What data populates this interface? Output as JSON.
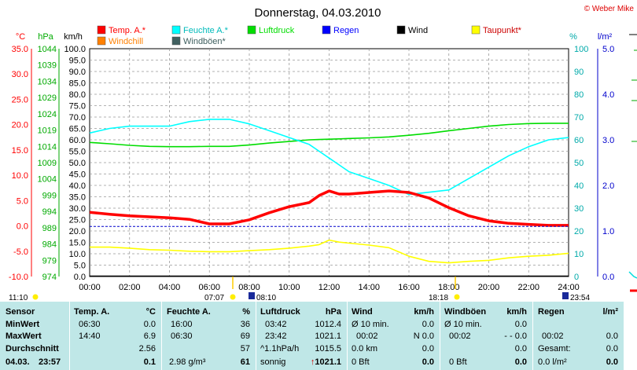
{
  "chart_data": {
    "type": "line",
    "title": "Donnerstag, 04.03.2010",
    "copyright": "© Weber Mike",
    "legend": [
      {
        "name": "Temp. A.*",
        "color": "#ff0000"
      },
      {
        "name": "Feuchte A.*",
        "color": "#00ffff"
      },
      {
        "name": "Luftdruck",
        "color": "#00dd00"
      },
      {
        "name": "Regen",
        "color": "#0000ff"
      },
      {
        "name": "Wind",
        "color": "#000000"
      },
      {
        "name": "Taupunkt*",
        "color": "#ffff00"
      },
      {
        "name": "Windchill",
        "color": "#ff8000"
      },
      {
        "name": "Windböen*",
        "color": "#406060"
      }
    ],
    "axes": {
      "temp": {
        "unit": "°C",
        "min": -10,
        "max": 35,
        "ticks": [
          "35.0",
          "30.0",
          "25.0",
          "20.0",
          "15.0",
          "10.0",
          "5.0",
          "0.0",
          "-5.0",
          "-10.0"
        ]
      },
      "pressure": {
        "unit": "hPa",
        "ticks": [
          "1044",
          "1039",
          "1034",
          "1029",
          "1024",
          "1019",
          "1014",
          "1009",
          "1004",
          "999",
          "994",
          "989",
          "984",
          "979",
          "974"
        ]
      },
      "wind": {
        "unit": "km/h",
        "min": 0,
        "max": 100,
        "ticks": [
          "100.0",
          "95.0",
          "90.0",
          "85.0",
          "80.0",
          "75.0",
          "70.0",
          "65.0",
          "60.0",
          "55.0",
          "50.0",
          "45.0",
          "40.0",
          "35.0",
          "30.0",
          "25.0",
          "20.0",
          "15.0",
          "10.0",
          "5.0",
          "0.0"
        ]
      },
      "humidity": {
        "unit": "%",
        "min": 0,
        "max": 100,
        "ticks": [
          "100",
          "90",
          "80",
          "70",
          "60",
          "50",
          "40",
          "30",
          "20",
          "10",
          "0"
        ]
      },
      "rain": {
        "unit": "l/m²",
        "min": 0,
        "max": 5,
        "ticks": [
          "5.0",
          "4.0",
          "3.0",
          "2.0",
          "1.0",
          "0.0"
        ]
      },
      "x": {
        "ticks": [
          "00:00",
          "02:00",
          "04:00",
          "06:00",
          "08:00",
          "10:00",
          "12:00",
          "14:00",
          "16:00",
          "18:00",
          "20:00",
          "22:00",
          "24:00"
        ]
      }
    },
    "x_hours": [
      0,
      1,
      2,
      3,
      4,
      5,
      6,
      7,
      8,
      9,
      10,
      11,
      11.5,
      12,
      12.5,
      13,
      14,
      15,
      16,
      17,
      18,
      19,
      20,
      21,
      22,
      23,
      24
    ],
    "series": [
      {
        "name": "Temp. A.*",
        "color": "#ff0000",
        "axis": "temp",
        "values": [
          2.7,
          2.3,
          2.0,
          1.8,
          1.6,
          1.3,
          0.4,
          0.4,
          1.2,
          2.6,
          3.8,
          4.6,
          6.0,
          6.9,
          6.3,
          6.3,
          6.6,
          6.9,
          6.6,
          5.5,
          3.6,
          2.0,
          1.0,
          0.5,
          0.3,
          0.1,
          0.1
        ]
      },
      {
        "name": "Feuchte A.*",
        "color": "#00ffff",
        "axis": "humidity",
        "values": [
          63,
          65,
          66,
          66,
          66,
          68,
          69,
          69,
          67,
          64,
          61,
          58,
          55,
          52,
          49,
          46,
          43,
          40,
          36,
          37,
          38,
          43,
          48,
          53,
          57,
          60,
          61
        ]
      },
      {
        "name": "Luftdruck",
        "color": "#00dd00",
        "axis": "pressure",
        "values": [
          1015.2,
          1014.8,
          1014.3,
          1014.0,
          1013.9,
          1013.9,
          1014.0,
          1014.0,
          1014.4,
          1015.0,
          1015.5,
          1016.0,
          1016.1,
          1016.2,
          1016.3,
          1016.4,
          1016.6,
          1016.9,
          1017.4,
          1018.0,
          1018.8,
          1019.5,
          1020.2,
          1020.7,
          1021.0,
          1021.1,
          1021.1
        ]
      },
      {
        "name": "Taupunkt*",
        "color": "#ffff00",
        "axis": "temp",
        "values": [
          -4.2,
          -4.2,
          -4.4,
          -4.7,
          -4.8,
          -5.0,
          -5.1,
          -5.1,
          -4.9,
          -4.7,
          -4.4,
          -4.0,
          -3.7,
          -2.8,
          -3.2,
          -3.4,
          -3.8,
          -4.3,
          -6.0,
          -7.0,
          -7.3,
          -7.0,
          -6.8,
          -6.3,
          -6.0,
          -5.8,
          -5.4
        ]
      }
    ],
    "rain_line_value": 1.1,
    "annotations": {
      "sunrise_left": "11:10",
      "sunrise": "07:07",
      "moonrise": "08:10",
      "sunset": "18:18",
      "moonset": "23:54"
    }
  },
  "table": {
    "sensor_header": "Sensor",
    "min_label": "MinWert",
    "max_label": "MaxWert",
    "avg_label": "Durchschnitt",
    "date": "04.03.",
    "time": "23:57",
    "temp": {
      "header": "Temp. A.",
      "unit": "°C",
      "min_time": "06:30",
      "min": "0.0",
      "max_time": "14:40",
      "max": "6.9",
      "avg": "2.56",
      "current": "0.1"
    },
    "humidity": {
      "header": "Feuchte A.",
      "unit": "%",
      "min_time": "16:00",
      "min": "36",
      "max_time": "06:30",
      "max": "69",
      "avg": "57",
      "abs": "2.98 g/m³",
      "current": "61"
    },
    "pressure": {
      "header": "Luftdruck",
      "unit": "hPa",
      "min_time": "03:42",
      "min": "1012.4",
      "max_time": "23:42",
      "max": "1021.1",
      "trend": "^1.1hPa/h",
      "avg": "1015.5",
      "weather": "sonnig",
      "current": "1021.1"
    },
    "wind": {
      "header": "Wind",
      "unit": "km/h",
      "r1a": "Ø 10 min.",
      "r1b": "0.0",
      "r2a": "00:02",
      "r2b": "N 0.0",
      "r3a": "0.0 km",
      "r3b": "0.0",
      "r4a": "0 Bft",
      "current": "0.0"
    },
    "gusts": {
      "header": "Windböen",
      "unit": "km/h",
      "r1a": "Ø 10 min.",
      "r1b": "0.0",
      "r2a": "00:02",
      "r2b": "- - 0.0",
      "r3b": "0.0",
      "r4a": "0 Bft",
      "current": "0.0"
    },
    "rain": {
      "header": "Regen",
      "unit": "l/m²",
      "r2a": "00:02",
      "r2b": "0.0",
      "r3a": "Gesamt:",
      "r3b": "0.0",
      "r4a": "0.0 l/m²",
      "current": "0.0"
    }
  }
}
